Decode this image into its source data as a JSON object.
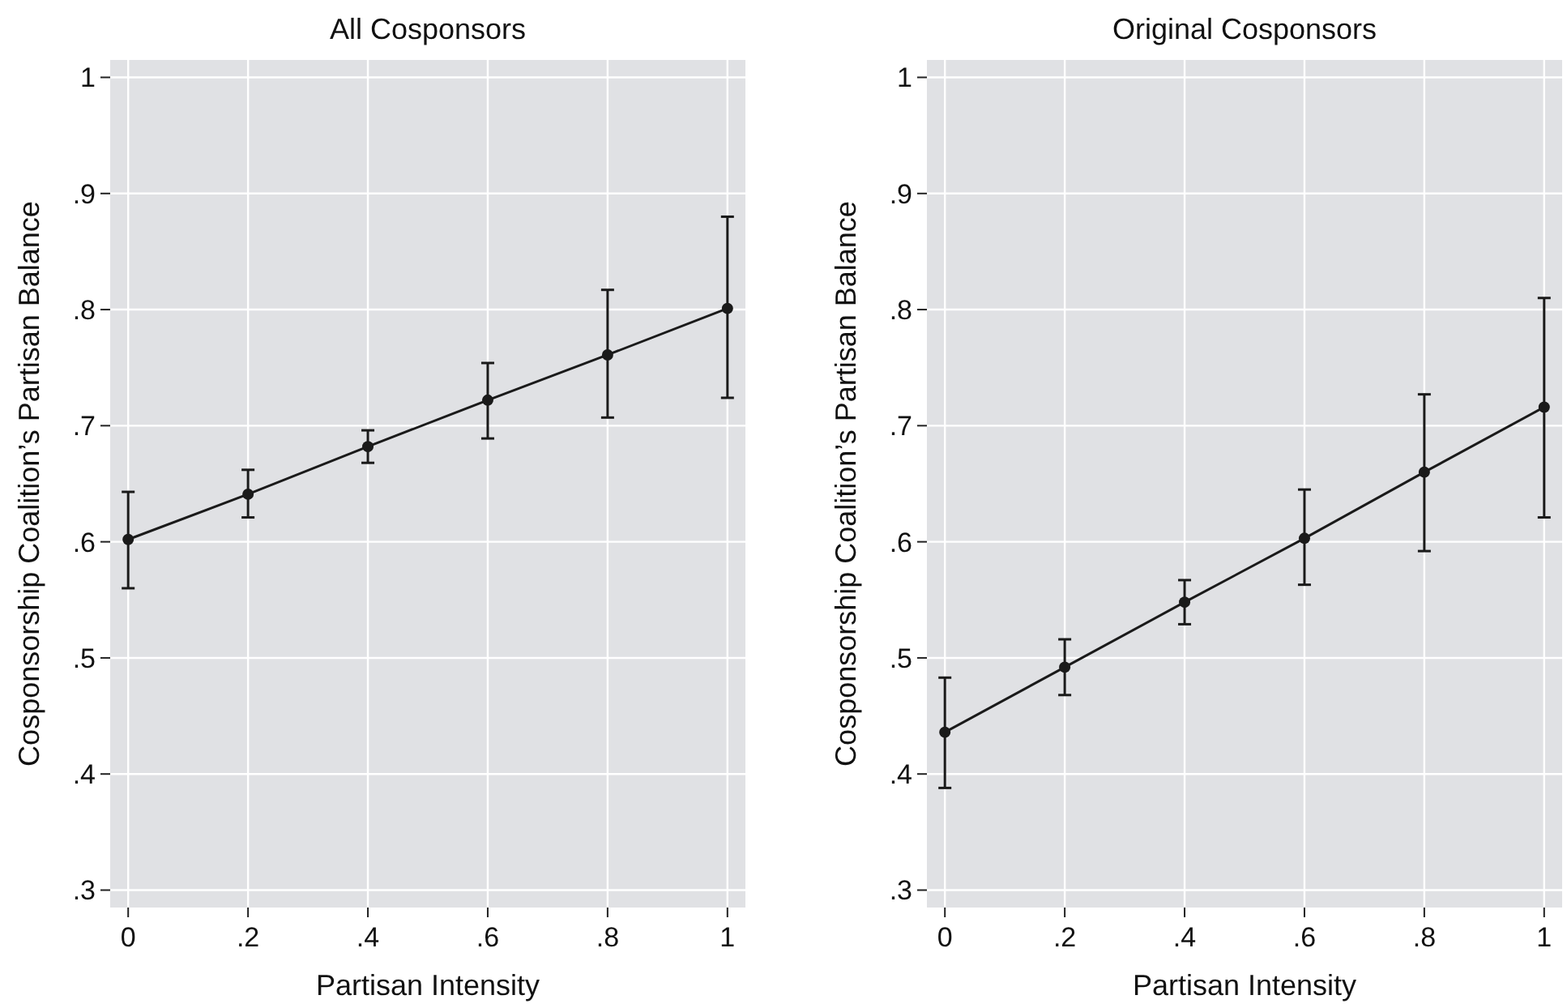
{
  "chart_data": [
    {
      "type": "line",
      "title": "All Cosponsors",
      "xlabel": "Partisan Intensity",
      "ylabel": "Cosponsorship Coalition’s Partisan Balance",
      "x": [
        0,
        0.2,
        0.4,
        0.6,
        0.8,
        1
      ],
      "series": [
        {
          "color": "#1a1a1a",
          "values": [
            0.602,
            0.641,
            0.682,
            0.722,
            0.761,
            0.801
          ],
          "errors": [
            [
              0.56,
              0.643
            ],
            [
              0.621,
              0.662
            ],
            [
              0.668,
              0.696
            ],
            [
              0.689,
              0.754
            ],
            [
              0.707,
              0.817
            ],
            [
              0.724,
              0.88
            ]
          ]
        }
      ],
      "xlim": [
        -0.03,
        1.03
      ],
      "ylim": [
        0.285,
        1.015
      ],
      "xticks": [
        {
          "value": 0,
          "label": "0"
        },
        {
          "value": 0.2,
          "label": ".2"
        },
        {
          "value": 0.4,
          "label": ".4"
        },
        {
          "value": 0.6,
          "label": ".6"
        },
        {
          "value": 0.8,
          "label": ".8"
        },
        {
          "value": 1,
          "label": "1"
        }
      ],
      "yticks": [
        {
          "value": 0.3,
          "label": ".3"
        },
        {
          "value": 0.4,
          "label": ".4"
        },
        {
          "value": 0.5,
          "label": ".5"
        },
        {
          "value": 0.6,
          "label": ".6"
        },
        {
          "value": 0.7,
          "label": ".7"
        },
        {
          "value": 0.8,
          "label": ".8"
        },
        {
          "value": 0.9,
          "label": ".9"
        },
        {
          "value": 1,
          "label": "1"
        }
      ],
      "grid": true,
      "marker": "circle",
      "line_style": "solid"
    },
    {
      "type": "line",
      "title": "Original Cosponsors",
      "xlabel": "Partisan Intensity",
      "ylabel": "Cosponsorship Coalition’s Partisan Balance",
      "x": [
        0,
        0.2,
        0.4,
        0.6,
        0.8,
        1
      ],
      "series": [
        {
          "color": "#1a1a1a",
          "values": [
            0.436,
            0.492,
            0.548,
            0.603,
            0.66,
            0.716
          ],
          "errors": [
            [
              0.388,
              0.483
            ],
            [
              0.468,
              0.516
            ],
            [
              0.529,
              0.567
            ],
            [
              0.563,
              0.645
            ],
            [
              0.592,
              0.727
            ],
            [
              0.621,
              0.81
            ]
          ]
        }
      ],
      "xlim": [
        -0.03,
        1.03
      ],
      "ylim": [
        0.285,
        1.015
      ],
      "xticks": [
        {
          "value": 0,
          "label": "0"
        },
        {
          "value": 0.2,
          "label": ".2"
        },
        {
          "value": 0.4,
          "label": ".4"
        },
        {
          "value": 0.6,
          "label": ".6"
        },
        {
          "value": 0.8,
          "label": ".8"
        },
        {
          "value": 1,
          "label": "1"
        }
      ],
      "yticks": [
        {
          "value": 0.3,
          "label": ".3"
        },
        {
          "value": 0.4,
          "label": ".4"
        },
        {
          "value": 0.5,
          "label": ".5"
        },
        {
          "value": 0.6,
          "label": ".6"
        },
        {
          "value": 0.7,
          "label": ".7"
        },
        {
          "value": 0.8,
          "label": ".8"
        },
        {
          "value": 0.9,
          "label": ".9"
        },
        {
          "value": 1,
          "label": "1"
        }
      ],
      "grid": true,
      "marker": "circle",
      "line_style": "solid"
    }
  ]
}
